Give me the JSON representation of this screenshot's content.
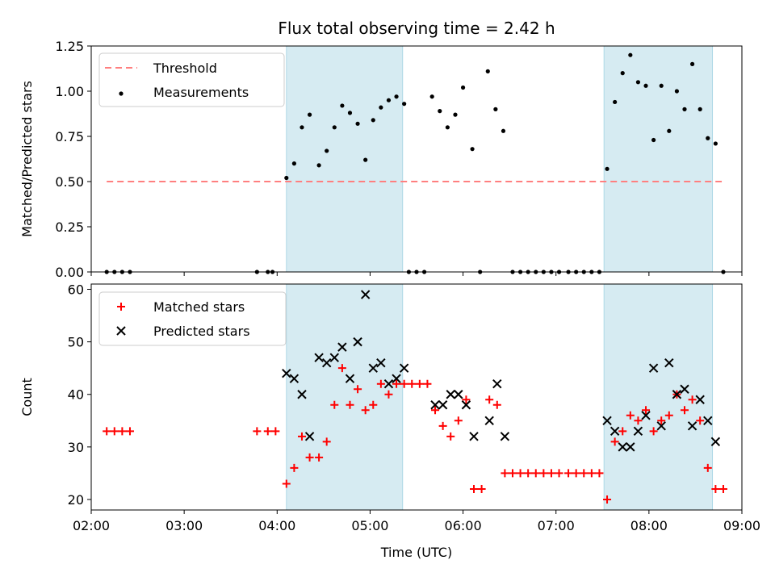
{
  "title": "Flux total observing time = 2.42 h",
  "colors": {
    "shade": "#add8e6",
    "threshold": "#ff7f7f",
    "measurement": "#000000",
    "matched": "#ff0000",
    "predicted": "#000000"
  },
  "chart_data": [
    {
      "type": "scatter",
      "ylabel": "Matched/Predicted stars",
      "xlabel": "",
      "ylim": [
        0,
        1.25
      ],
      "yticks": [
        "0.00",
        "0.25",
        "0.50",
        "0.75",
        "1.00",
        "1.25"
      ],
      "xlim": [
        "02:00",
        "09:00"
      ],
      "grid": false,
      "legend_position": "top-left",
      "legend": [
        "Threshold",
        "Measurements"
      ],
      "shaded_intervals": [
        [
          "04:06",
          "05:21"
        ],
        [
          "07:31",
          "08:41"
        ]
      ],
      "threshold": {
        "name": "Threshold",
        "value": 0.5,
        "x_range": [
          "02:10",
          "08:47"
        ]
      },
      "series": [
        {
          "name": "Measurements",
          "points": [
            [
              "02:10",
              0
            ],
            [
              "02:15",
              0
            ],
            [
              "02:20",
              0
            ],
            [
              "02:25",
              0
            ],
            [
              "03:47",
              0
            ],
            [
              "03:54",
              0
            ],
            [
              "03:57",
              0
            ],
            [
              "04:06",
              0.52
            ],
            [
              "04:11",
              0.6
            ],
            [
              "04:16",
              0.8
            ],
            [
              "04:21",
              0.87
            ],
            [
              "04:27",
              0.59
            ],
            [
              "04:32",
              0.67
            ],
            [
              "04:37",
              0.8
            ],
            [
              "04:42",
              0.92
            ],
            [
              "04:47",
              0.88
            ],
            [
              "04:52",
              0.82
            ],
            [
              "04:57",
              0.62
            ],
            [
              "05:02",
              0.84
            ],
            [
              "05:07",
              0.91
            ],
            [
              "05:12",
              0.95
            ],
            [
              "05:17",
              0.97
            ],
            [
              "05:22",
              0.93
            ],
            [
              "05:25",
              0
            ],
            [
              "05:30",
              0
            ],
            [
              "05:35",
              0
            ],
            [
              "05:40",
              0.97
            ],
            [
              "05:45",
              0.89
            ],
            [
              "05:50",
              0.8
            ],
            [
              "05:55",
              0.87
            ],
            [
              "06:00",
              1.02
            ],
            [
              "06:06",
              0.68
            ],
            [
              "06:11",
              0
            ],
            [
              "06:16",
              1.11
            ],
            [
              "06:21",
              0.9
            ],
            [
              "06:26",
              0.78
            ],
            [
              "06:32",
              0
            ],
            [
              "06:37",
              0
            ],
            [
              "06:42",
              0
            ],
            [
              "06:47",
              0
            ],
            [
              "06:52",
              0
            ],
            [
              "06:57",
              0
            ],
            [
              "07:02",
              0
            ],
            [
              "07:08",
              0
            ],
            [
              "07:13",
              0
            ],
            [
              "07:18",
              0
            ],
            [
              "07:23",
              0
            ],
            [
              "07:28",
              0
            ],
            [
              "07:33",
              0.57
            ],
            [
              "07:38",
              0.94
            ],
            [
              "07:43",
              1.1
            ],
            [
              "07:48",
              1.2
            ],
            [
              "07:53",
              1.05
            ],
            [
              "07:58",
              1.03
            ],
            [
              "08:03",
              0.73
            ],
            [
              "08:08",
              1.03
            ],
            [
              "08:13",
              0.78
            ],
            [
              "08:18",
              1.0
            ],
            [
              "08:23",
              0.9
            ],
            [
              "08:28",
              1.15
            ],
            [
              "08:33",
              0.9
            ],
            [
              "08:38",
              0.74
            ],
            [
              "08:43",
              0.71
            ],
            [
              "08:48",
              0
            ]
          ]
        }
      ]
    },
    {
      "type": "scatter",
      "ylabel": "Count",
      "xlabel": "Time (UTC)",
      "ylim": [
        18,
        61
      ],
      "yticks": [
        "20",
        "30",
        "40",
        "50",
        "60"
      ],
      "xticks": [
        "02:00",
        "03:00",
        "04:00",
        "05:00",
        "06:00",
        "07:00",
        "08:00",
        "09:00"
      ],
      "xlim": [
        "02:00",
        "09:00"
      ],
      "grid": false,
      "legend_position": "top-left",
      "legend": [
        "Matched stars",
        "Predicted stars"
      ],
      "shaded_intervals": [
        [
          "04:06",
          "05:21"
        ],
        [
          "07:31",
          "08:41"
        ]
      ],
      "series": [
        {
          "name": "Matched stars",
          "points": [
            [
              "02:10",
              33
            ],
            [
              "02:15",
              33
            ],
            [
              "02:20",
              33
            ],
            [
              "02:25",
              33
            ],
            [
              "03:47",
              33
            ],
            [
              "03:54",
              33
            ],
            [
              "03:59",
              33
            ],
            [
              "04:06",
              23
            ],
            [
              "04:11",
              26
            ],
            [
              "04:16",
              32
            ],
            [
              "04:21",
              28
            ],
            [
              "04:27",
              28
            ],
            [
              "04:32",
              31
            ],
            [
              "04:37",
              38
            ],
            [
              "04:42",
              45
            ],
            [
              "04:47",
              38
            ],
            [
              "04:52",
              41
            ],
            [
              "04:57",
              37
            ],
            [
              "05:02",
              38
            ],
            [
              "05:07",
              42
            ],
            [
              "05:12",
              40
            ],
            [
              "05:17",
              42
            ],
            [
              "05:22",
              42
            ],
            [
              "05:27",
              42
            ],
            [
              "05:32",
              42
            ],
            [
              "05:37",
              42
            ],
            [
              "05:42",
              37
            ],
            [
              "05:47",
              34
            ],
            [
              "05:52",
              32
            ],
            [
              "05:57",
              35
            ],
            [
              "06:02",
              39
            ],
            [
              "06:07",
              22
            ],
            [
              "06:12",
              22
            ],
            [
              "06:17",
              39
            ],
            [
              "06:22",
              38
            ],
            [
              "06:27",
              25
            ],
            [
              "06:32",
              25
            ],
            [
              "06:37",
              25
            ],
            [
              "06:42",
              25
            ],
            [
              "06:47",
              25
            ],
            [
              "06:52",
              25
            ],
            [
              "06:57",
              25
            ],
            [
              "07:02",
              25
            ],
            [
              "07:08",
              25
            ],
            [
              "07:13",
              25
            ],
            [
              "07:18",
              25
            ],
            [
              "07:23",
              25
            ],
            [
              "07:28",
              25
            ],
            [
              "07:33",
              20
            ],
            [
              "07:38",
              31
            ],
            [
              "07:43",
              33
            ],
            [
              "07:48",
              36
            ],
            [
              "07:53",
              35
            ],
            [
              "07:58",
              37
            ],
            [
              "08:03",
              33
            ],
            [
              "08:08",
              35
            ],
            [
              "08:13",
              36
            ],
            [
              "08:18",
              40
            ],
            [
              "08:23",
              37
            ],
            [
              "08:28",
              39
            ],
            [
              "08:33",
              35
            ],
            [
              "08:38",
              26
            ],
            [
              "08:43",
              22
            ],
            [
              "08:48",
              22
            ]
          ]
        },
        {
          "name": "Predicted stars",
          "points": [
            [
              "04:06",
              44
            ],
            [
              "04:11",
              43
            ],
            [
              "04:16",
              40
            ],
            [
              "04:21",
              32
            ],
            [
              "04:27",
              47
            ],
            [
              "04:32",
              46
            ],
            [
              "04:37",
              47
            ],
            [
              "04:42",
              49
            ],
            [
              "04:47",
              43
            ],
            [
              "04:52",
              50
            ],
            [
              "04:57",
              59
            ],
            [
              "05:02",
              45
            ],
            [
              "05:07",
              46
            ],
            [
              "05:12",
              42
            ],
            [
              "05:17",
              43
            ],
            [
              "05:22",
              45
            ],
            [
              "05:42",
              38
            ],
            [
              "05:47",
              38
            ],
            [
              "05:52",
              40
            ],
            [
              "05:57",
              40
            ],
            [
              "06:02",
              38
            ],
            [
              "06:07",
              32
            ],
            [
              "06:17",
              35
            ],
            [
              "06:22",
              42
            ],
            [
              "06:27",
              32
            ],
            [
              "07:33",
              35
            ],
            [
              "07:38",
              33
            ],
            [
              "07:43",
              30
            ],
            [
              "07:48",
              30
            ],
            [
              "07:53",
              33
            ],
            [
              "07:58",
              36
            ],
            [
              "08:03",
              45
            ],
            [
              "08:08",
              34
            ],
            [
              "08:13",
              46
            ],
            [
              "08:18",
              40
            ],
            [
              "08:23",
              41
            ],
            [
              "08:28",
              34
            ],
            [
              "08:33",
              39
            ],
            [
              "08:38",
              35
            ],
            [
              "08:43",
              31
            ]
          ]
        }
      ]
    }
  ]
}
